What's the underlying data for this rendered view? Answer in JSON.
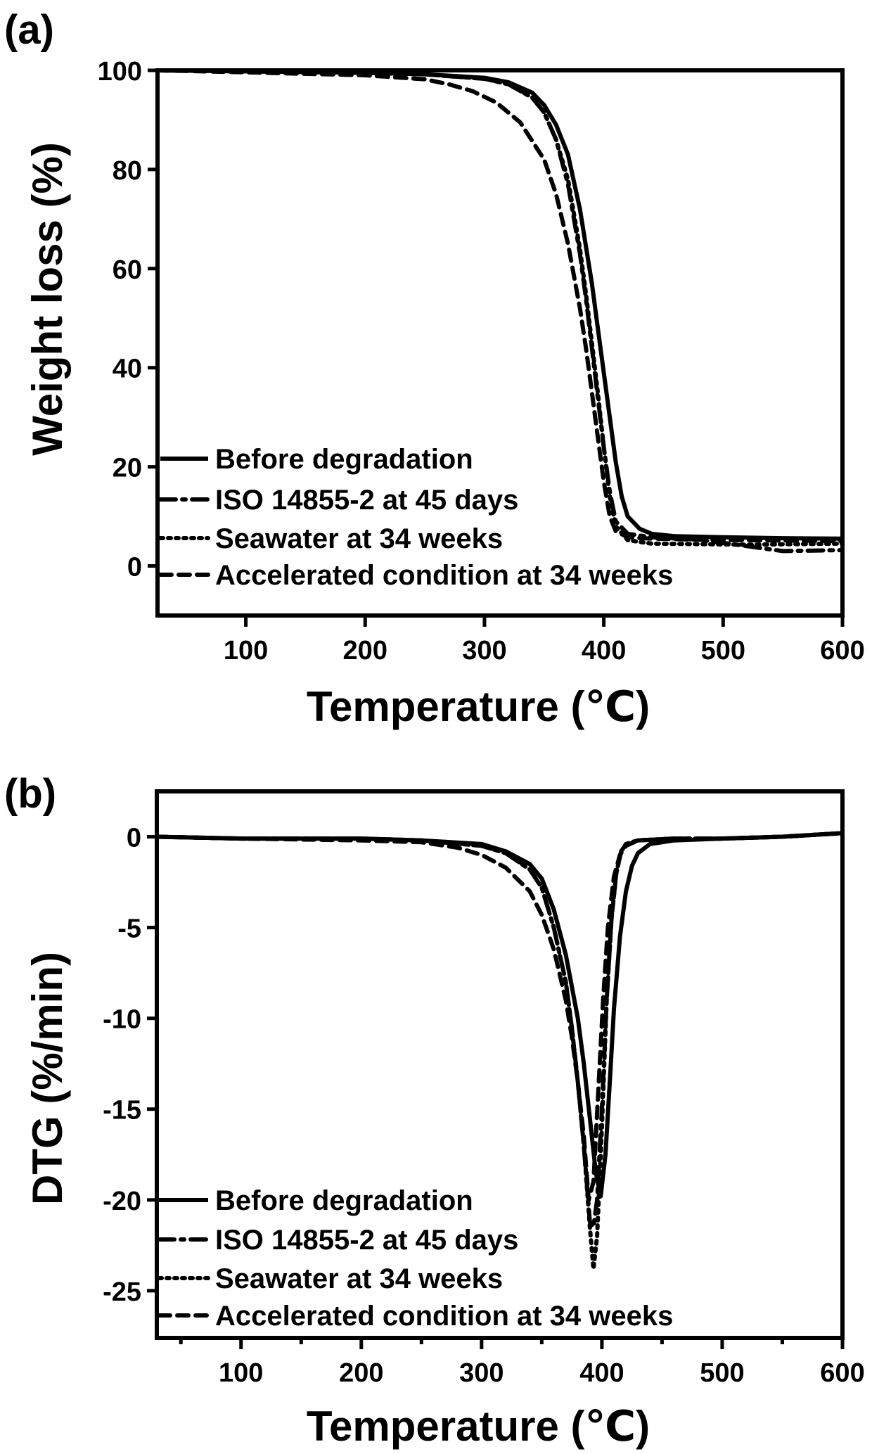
{
  "chart_data": [
    {
      "panel_label": "(a)",
      "type": "line",
      "title": "",
      "xlabel": "Temperature (℃)",
      "ylabel": "Weight loss (%)",
      "xlim": [
        26,
        600
      ],
      "ylim": [
        -10,
        100
      ],
      "xticks": [
        100,
        200,
        300,
        400,
        500,
        600
      ],
      "xtick_labels": [
        "100",
        "200",
        "300",
        "400",
        "500",
        "600"
      ],
      "yticks": [
        0,
        20,
        40,
        60,
        80,
        100
      ],
      "ytick_labels": [
        "0",
        "20",
        "40",
        "60",
        "80",
        "100"
      ],
      "minor_xticks": [],
      "grid": false,
      "legend_position": "bottom-left",
      "series": [
        {
          "name": "Before degradation",
          "style": "solid",
          "x": [
            26,
            100,
            200,
            250,
            300,
            320,
            340,
            350,
            360,
            370,
            380,
            390,
            395,
            400,
            405,
            410,
            415,
            420,
            430,
            440,
            460,
            500,
            550,
            600
          ],
          "y": [
            100,
            99.8,
            99.5,
            99.2,
            98.5,
            97.6,
            95.5,
            93,
            89,
            83,
            72,
            57,
            48,
            39,
            30,
            21,
            14,
            10,
            7.5,
            6.5,
            6,
            5.8,
            5.6,
            5.5
          ]
        },
        {
          "name": "ISO 14855-2 at 45 days",
          "style": "dashdot",
          "x": [
            26,
            100,
            200,
            250,
            300,
            320,
            340,
            350,
            360,
            370,
            380,
            385,
            390,
            395,
            400,
            405,
            410,
            420,
            440,
            480,
            520,
            550,
            600
          ],
          "y": [
            100,
            99.8,
            99.5,
            99.2,
            98.3,
            97.2,
            94.5,
            91.5,
            86,
            77,
            63,
            54,
            44,
            34,
            24,
            15,
            9,
            6.5,
            5.8,
            5.3,
            4.0,
            3.0,
            3.2
          ]
        },
        {
          "name": "Seawater at 34 weeks",
          "style": "dotted",
          "x": [
            26,
            100,
            200,
            250,
            300,
            320,
            340,
            350,
            360,
            370,
            380,
            385,
            390,
            395,
            400,
            405,
            410,
            420,
            440,
            480,
            520,
            560,
            600
          ],
          "y": [
            100,
            99.8,
            99.5,
            99.2,
            98.3,
            97.2,
            94.5,
            91.5,
            86,
            78,
            64,
            55,
            45,
            35,
            24,
            14,
            8,
            5.2,
            4.5,
            4.4,
            4.3,
            4.4,
            4.5
          ]
        },
        {
          "name": "Accelerated condition at 34 weeks",
          "style": "dashed",
          "x": [
            26,
            100,
            200,
            250,
            270,
            290,
            310,
            330,
            350,
            360,
            370,
            380,
            385,
            390,
            395,
            400,
            405,
            410,
            420,
            440,
            480,
            520,
            600
          ],
          "y": [
            100,
            99.6,
            99,
            98.2,
            97.2,
            95.8,
            93.5,
            89.5,
            82,
            75,
            65,
            52,
            44,
            35,
            26,
            17,
            10,
            7,
            5.8,
            5.5,
            5.3,
            5.2,
            5.0
          ]
        }
      ]
    },
    {
      "panel_label": "(b)",
      "type": "line",
      "title": "",
      "xlabel": "Temperature (℃)",
      "ylabel": "DTG (%/min)",
      "xlim": [
        30,
        600
      ],
      "ylim": [
        -27.6,
        2.5
      ],
      "xticks": [
        100,
        200,
        300,
        400,
        500,
        600
      ],
      "xtick_labels": [
        "100",
        "200",
        "300",
        "400",
        "500",
        "600"
      ],
      "minor_xticks": [
        50,
        150,
        250,
        350,
        450,
        550
      ],
      "yticks": [
        0,
        -5,
        -10,
        -15,
        -20,
        -25
      ],
      "ytick_labels": [
        "0",
        "-5",
        "-10",
        "-15",
        "-20",
        "-25"
      ],
      "grid": false,
      "legend_position": "bottom-left",
      "series": [
        {
          "name": "Before degradation",
          "style": "solid",
          "x": [
            30,
            100,
            200,
            250,
            300,
            320,
            340,
            350,
            360,
            370,
            380,
            385,
            390,
            395,
            399,
            403,
            407,
            410,
            415,
            420,
            425,
            430,
            440,
            460,
            500,
            550,
            600
          ],
          "y": [
            0,
            -0.1,
            -0.1,
            -0.2,
            -0.4,
            -0.8,
            -1.5,
            -2.3,
            -4,
            -6.5,
            -10,
            -12.5,
            -15.5,
            -18.5,
            -19.8,
            -17.5,
            -13,
            -9.5,
            -5.5,
            -3,
            -1.6,
            -0.9,
            -0.4,
            -0.2,
            -0.1,
            0,
            0.2
          ]
        },
        {
          "name": "ISO 14855-2 at 45 days",
          "style": "dashdot",
          "x": [
            30,
            100,
            200,
            250,
            300,
            320,
            340,
            350,
            360,
            370,
            375,
            380,
            385,
            390,
            393,
            396,
            400,
            404,
            408,
            412,
            416,
            420,
            430,
            460,
            500,
            550,
            600
          ],
          "y": [
            0,
            -0.1,
            -0.1,
            -0.2,
            -0.5,
            -0.9,
            -1.8,
            -2.8,
            -5,
            -8,
            -10.5,
            -13.5,
            -17,
            -21.2,
            -21.5,
            -20,
            -15,
            -9,
            -4.5,
            -2,
            -0.8,
            -0.4,
            -0.2,
            -0.1,
            -0.1,
            0,
            0.2
          ]
        },
        {
          "name": "Seawater at 34 weeks",
          "style": "dotted",
          "x": [
            30,
            100,
            200,
            250,
            300,
            320,
            340,
            350,
            360,
            370,
            375,
            380,
            385,
            390,
            393,
            396,
            400,
            404,
            408,
            412,
            416,
            420,
            430,
            460,
            500,
            550,
            600
          ],
          "y": [
            0,
            -0.1,
            -0.1,
            -0.2,
            -0.5,
            -0.9,
            -1.8,
            -2.8,
            -5,
            -8,
            -10.5,
            -13.5,
            -17,
            -21.5,
            -23.8,
            -22,
            -16,
            -9,
            -4.5,
            -2,
            -0.8,
            -0.4,
            -0.2,
            -0.1,
            -0.1,
            0,
            0.2
          ]
        },
        {
          "name": "Accelerated condition at 34 weeks",
          "style": "dashed",
          "x": [
            30,
            100,
            200,
            250,
            280,
            300,
            320,
            340,
            350,
            360,
            370,
            375,
            380,
            385,
            389,
            393,
            397,
            401,
            405,
            410,
            415,
            420,
            430,
            460,
            500,
            550,
            600
          ],
          "y": [
            0,
            -0.1,
            -0.2,
            -0.3,
            -0.6,
            -1,
            -1.7,
            -3,
            -4.3,
            -6.2,
            -9,
            -11,
            -13.5,
            -16.5,
            -20,
            -19,
            -14,
            -9,
            -5,
            -2.2,
            -1,
            -0.5,
            -0.2,
            -0.1,
            -0.1,
            0,
            0.2
          ]
        }
      ]
    }
  ]
}
